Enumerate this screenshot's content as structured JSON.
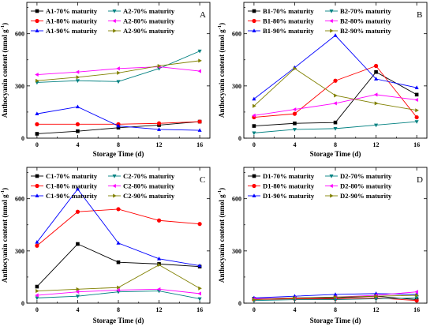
{
  "figure": {
    "x_axis_title": "Storage Time (d)",
    "y_axis_title": "Anthocyanin content (nmol g",
    "y_axis_exponent": "-1",
    "y_axis_title_close": ")"
  },
  "chart_data": [
    {
      "type": "line",
      "panel_letter": "A",
      "x": [
        0,
        4,
        8,
        12,
        16
      ],
      "xlim": [
        -1,
        17
      ],
      "ylim": [
        0,
        780
      ],
      "yticks": [
        0,
        300,
        600
      ],
      "grid": false,
      "legend_position": "top-left, two columns",
      "series": [
        {
          "name": "A1-70% maturity",
          "color": "#000000",
          "marker": "square",
          "values": [
            25,
            40,
            60,
            75,
            95
          ]
        },
        {
          "name": "A1-80% maturity",
          "color": "#ff0000",
          "marker": "circle",
          "values": [
            80,
            80,
            80,
            85,
            95
          ]
        },
        {
          "name": "A1-90% maturity",
          "color": "#0000ff",
          "marker": "triangle-up",
          "values": [
            140,
            180,
            70,
            50,
            45
          ]
        },
        {
          "name": "A2-70% maturity",
          "color": "#008080",
          "marker": "triangle-down",
          "values": [
            320,
            330,
            325,
            400,
            500
          ]
        },
        {
          "name": "A2-80% maturity",
          "color": "#ff00ff",
          "marker": "triangle-left",
          "values": [
            365,
            380,
            400,
            410,
            385
          ]
        },
        {
          "name": "A2-90% maturity",
          "color": "#808000",
          "marker": "triangle-right",
          "values": [
            330,
            350,
            375,
            415,
            445
          ]
        }
      ]
    },
    {
      "type": "line",
      "panel_letter": "B",
      "x": [
        0,
        4,
        8,
        12,
        16
      ],
      "xlim": [
        -1,
        17
      ],
      "ylim": [
        0,
        780
      ],
      "yticks": [
        0,
        300,
        600
      ],
      "grid": false,
      "legend_position": "top-left, two columns",
      "series": [
        {
          "name": "B1-70% maturity",
          "color": "#000000",
          "marker": "square",
          "values": [
            70,
            85,
            90,
            380,
            250
          ]
        },
        {
          "name": "B1-80% maturity",
          "color": "#ff0000",
          "marker": "circle",
          "values": [
            120,
            140,
            330,
            415,
            120
          ]
        },
        {
          "name": "B1-90% maturity",
          "color": "#0000ff",
          "marker": "triangle-up",
          "values": [
            225,
            405,
            590,
            340,
            290
          ]
        },
        {
          "name": "B2-70% maturity",
          "color": "#008080",
          "marker": "triangle-down",
          "values": [
            30,
            50,
            55,
            75,
            95
          ]
        },
        {
          "name": "B2-80% maturity",
          "color": "#ff00ff",
          "marker": "triangle-left",
          "values": [
            130,
            165,
            200,
            250,
            220
          ]
        },
        {
          "name": "B2-90% maturity",
          "color": "#808000",
          "marker": "triangle-right",
          "values": [
            185,
            400,
            245,
            200,
            160
          ]
        }
      ]
    },
    {
      "type": "line",
      "panel_letter": "C",
      "x": [
        0,
        4,
        8,
        12,
        16
      ],
      "xlim": [
        -1,
        17
      ],
      "ylim": [
        0,
        780
      ],
      "yticks": [
        0,
        300,
        600
      ],
      "grid": false,
      "legend_position": "top-left, two columns",
      "series": [
        {
          "name": "C1-70% maturity",
          "color": "#000000",
          "marker": "square",
          "values": [
            95,
            340,
            235,
            225,
            210
          ]
        },
        {
          "name": "C1-80% maturity",
          "color": "#ff0000",
          "marker": "circle",
          "values": [
            330,
            525,
            540,
            475,
            455
          ]
        },
        {
          "name": "C1-90% maturity",
          "color": "#0000ff",
          "marker": "triangle-up",
          "values": [
            350,
            655,
            345,
            255,
            215
          ]
        },
        {
          "name": "C2-70% maturity",
          "color": "#008080",
          "marker": "triangle-down",
          "values": [
            30,
            40,
            65,
            70,
            25
          ]
        },
        {
          "name": "C2-80% maturity",
          "color": "#ff00ff",
          "marker": "triangle-left",
          "values": [
            45,
            65,
            75,
            80,
            55
          ]
        },
        {
          "name": "C2-90% maturity",
          "color": "#808000",
          "marker": "triangle-right",
          "values": [
            70,
            80,
            90,
            220,
            85
          ]
        }
      ]
    },
    {
      "type": "line",
      "panel_letter": "D",
      "x": [
        0,
        4,
        8,
        12,
        16
      ],
      "xlim": [
        -1,
        17
      ],
      "ylim": [
        0,
        780
      ],
      "yticks": [
        0,
        300,
        600
      ],
      "grid": false,
      "legend_position": "top-left, two columns",
      "series": [
        {
          "name": "D1-70% maturity",
          "color": "#000000",
          "marker": "square",
          "values": [
            25,
            30,
            30,
            40,
            20
          ]
        },
        {
          "name": "D1-80% maturity",
          "color": "#ff0000",
          "marker": "circle",
          "values": [
            20,
            25,
            25,
            30,
            15
          ]
        },
        {
          "name": "D1-90% maturity",
          "color": "#0000ff",
          "marker": "triangle-up",
          "values": [
            30,
            40,
            50,
            55,
            50
          ]
        },
        {
          "name": "D2-70% maturity",
          "color": "#008080",
          "marker": "triangle-down",
          "values": [
            15,
            20,
            20,
            25,
            30
          ]
        },
        {
          "name": "D2-80% maturity",
          "color": "#ff00ff",
          "marker": "triangle-left",
          "values": [
            25,
            30,
            35,
            45,
            65
          ]
        },
        {
          "name": "D2-90% maturity",
          "color": "#808000",
          "marker": "triangle-right",
          "values": [
            20,
            30,
            35,
            40,
            45
          ]
        }
      ]
    }
  ]
}
